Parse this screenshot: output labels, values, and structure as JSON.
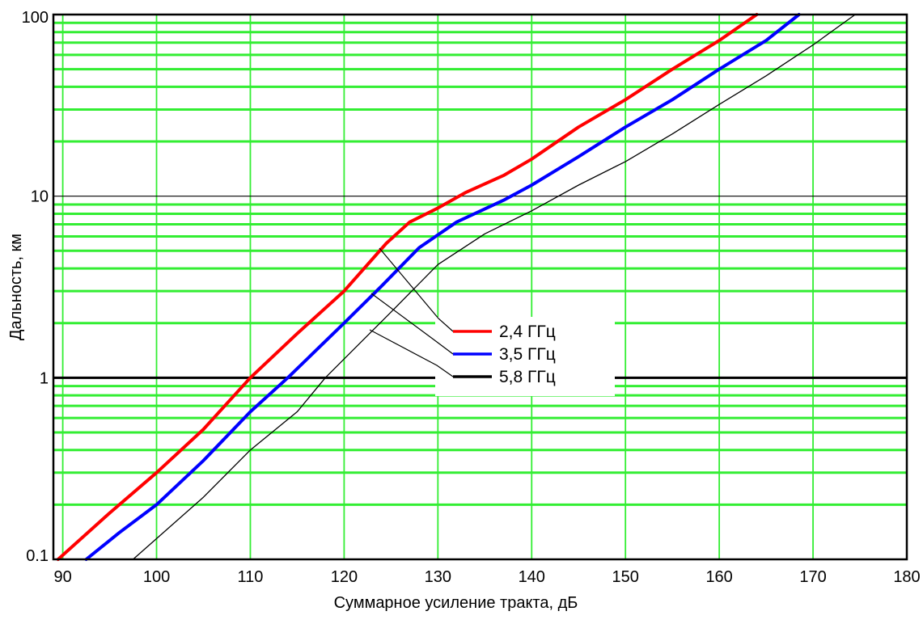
{
  "chart_data": {
    "type": "line",
    "xlabel": "Суммарное усиление тракта, дБ",
    "ylabel": "Дальность, км",
    "xlim": [
      89,
      180
    ],
    "ylim": [
      0.1,
      100
    ],
    "yscale": "log",
    "grid": true,
    "legend_position": "center",
    "x_ticks": [
      "90",
      "100",
      "110",
      "120",
      "130",
      "140",
      "150",
      "160",
      "170",
      "180"
    ],
    "y_ticks": [
      "0.1",
      "1",
      "10",
      "100"
    ],
    "colors": {
      "grid": "#33ee33",
      "grid_decade": "#000000",
      "frame": "#000000"
    },
    "series": [
      {
        "name": "2,4 ГГц",
        "color": "#ff0000",
        "points": [
          [
            89.5,
            0.1
          ],
          [
            95,
            0.18
          ],
          [
            100,
            0.3
          ],
          [
            105,
            0.52
          ],
          [
            110,
            1.0
          ],
          [
            115,
            1.75
          ],
          [
            120,
            3.0
          ],
          [
            124.5,
            5.5
          ],
          [
            127,
            7.2
          ],
          [
            130,
            8.6
          ],
          [
            133,
            10.5
          ],
          [
            137,
            13.0
          ],
          [
            140,
            16.0
          ],
          [
            145,
            24.0
          ],
          [
            150,
            34.0
          ],
          [
            155,
            50.0
          ],
          [
            160,
            72.0
          ],
          [
            164,
            100.0
          ]
        ]
      },
      {
        "name": "3,5 ГГц",
        "color": "#0000ff",
        "points": [
          [
            92.5,
            0.1
          ],
          [
            96,
            0.14
          ],
          [
            100,
            0.2
          ],
          [
            105,
            0.35
          ],
          [
            110,
            0.65
          ],
          [
            114,
            1.0
          ],
          [
            120,
            2.0
          ],
          [
            124,
            3.2
          ],
          [
            128,
            5.2
          ],
          [
            132,
            7.2
          ],
          [
            137,
            9.5
          ],
          [
            140,
            11.5
          ],
          [
            145,
            16.5
          ],
          [
            150,
            24.0
          ],
          [
            155,
            34.0
          ],
          [
            160,
            50.0
          ],
          [
            165,
            72.0
          ],
          [
            168.5,
            100.0
          ]
        ]
      },
      {
        "name": "5,8 ГГц",
        "color": "#000000",
        "points": [
          [
            97.5,
            0.1
          ],
          [
            100,
            0.13
          ],
          [
            105,
            0.22
          ],
          [
            110,
            0.4
          ],
          [
            115,
            0.65
          ],
          [
            118,
            1.0
          ],
          [
            125,
            2.3
          ],
          [
            130,
            4.2
          ],
          [
            135,
            6.2
          ],
          [
            140,
            8.3
          ],
          [
            145,
            11.5
          ],
          [
            150,
            15.5
          ],
          [
            155,
            22.0
          ],
          [
            160,
            32.0
          ],
          [
            165,
            46.0
          ],
          [
            170,
            68.0
          ],
          [
            174.5,
            100.0
          ]
        ]
      }
    ]
  }
}
